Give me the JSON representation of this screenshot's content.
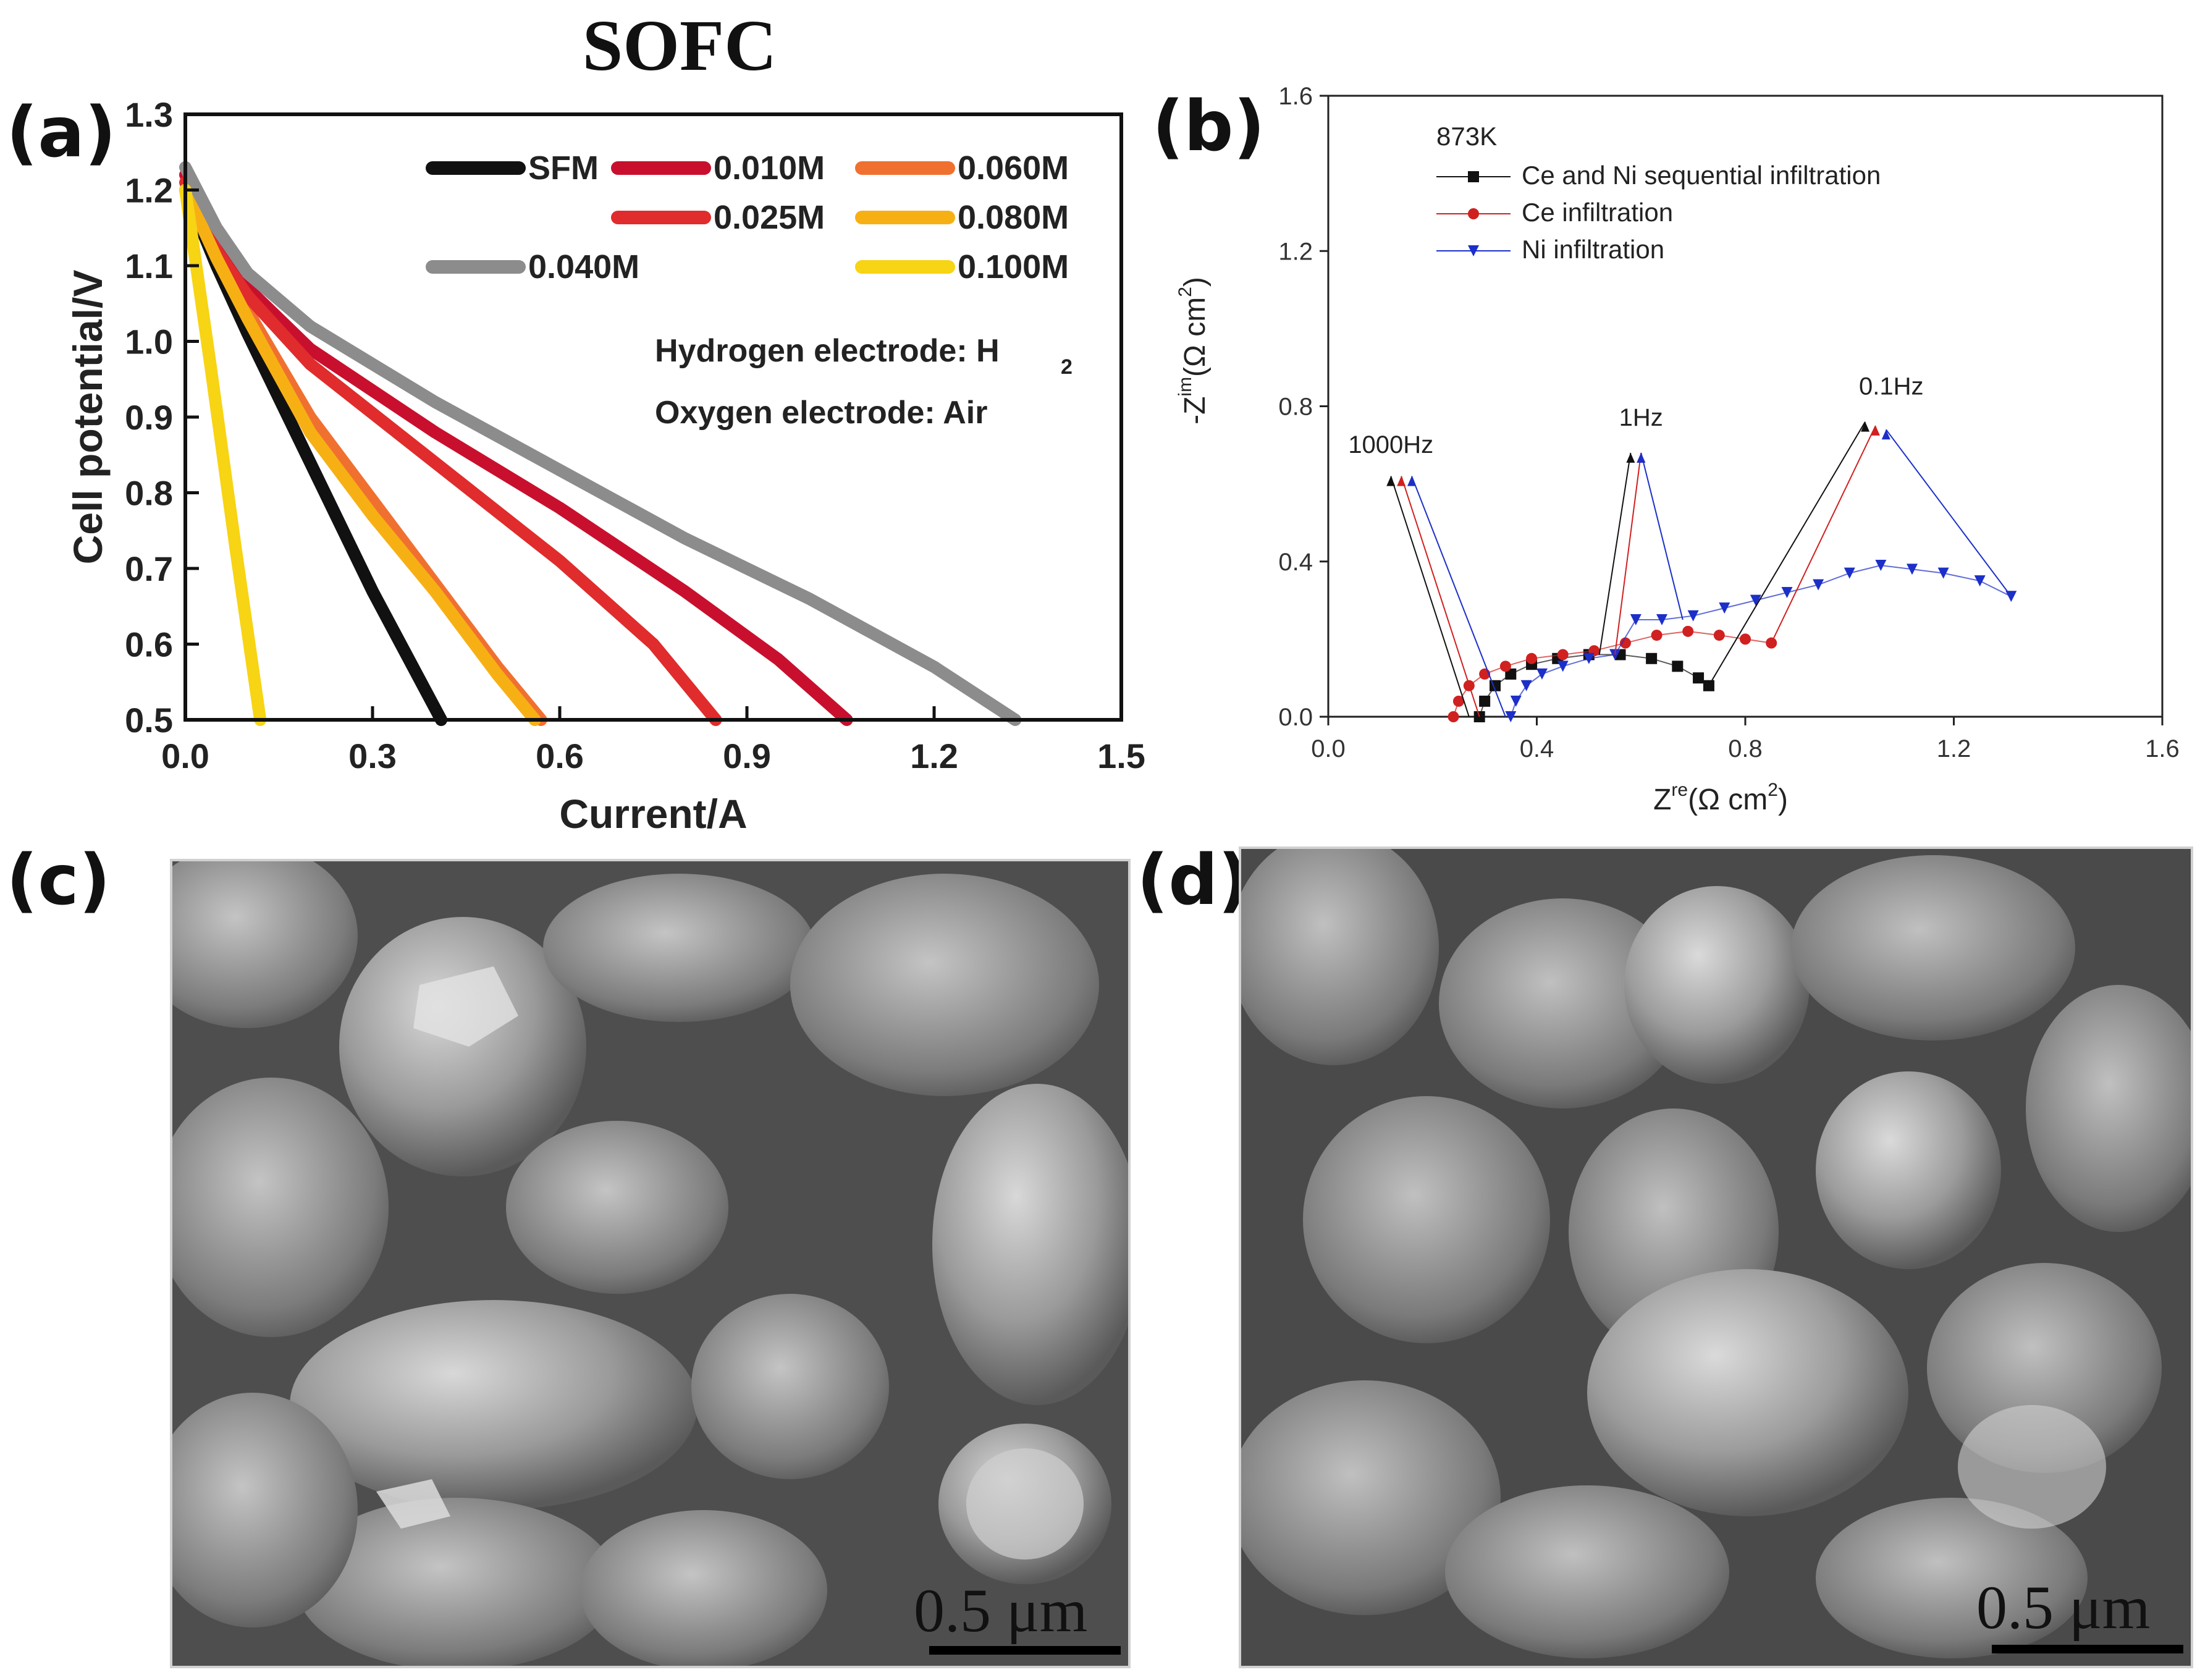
{
  "figure": {
    "title": "SOFC"
  },
  "panels": [
    {
      "label": "(a)"
    },
    {
      "label": "(b)"
    },
    {
      "label": "(c)"
    },
    {
      "label": "(d)"
    }
  ],
  "chart_data": [
    {
      "type": "line",
      "panel": "(a)",
      "xlabel": "Current/A",
      "ylabel": "Cell potential/V",
      "xlim": [
        0.0,
        1.5
      ],
      "ylim": [
        0.5,
        1.3
      ],
      "xticks": [
        "0.0",
        "0.3",
        "0.6",
        "0.9",
        "1.2",
        "1.5"
      ],
      "yticks": [
        "0.5",
        "0.6",
        "0.7",
        "0.8",
        "0.9",
        "1.0",
        "1.1",
        "1.2",
        "1.3"
      ],
      "annotations": [
        "Hydrogen electrode: H",
        "2",
        "Oxygen electrode: Air"
      ],
      "legend_position": "top-right",
      "series": [
        {
          "name": "SFM",
          "color": "#111111",
          "x": [
            0.0,
            0.05,
            0.1,
            0.2,
            0.3,
            0.41
          ],
          "y": [
            1.2,
            1.1,
            1.01,
            0.84,
            0.67,
            0.5
          ]
        },
        {
          "name": "0.010M",
          "color": "#c8102e",
          "x": [
            0.0,
            0.05,
            0.1,
            0.2,
            0.4,
            0.6,
            0.8,
            0.95,
            1.06
          ],
          "y": [
            1.22,
            1.13,
            1.07,
            0.99,
            0.88,
            0.78,
            0.67,
            0.58,
            0.5
          ]
        },
        {
          "name": "0.060M",
          "color": "#f07030",
          "x": [
            0.0,
            0.05,
            0.1,
            0.2,
            0.3,
            0.4,
            0.5,
            0.57
          ],
          "y": [
            1.2,
            1.12,
            1.04,
            0.9,
            0.79,
            0.68,
            0.57,
            0.5
          ]
        },
        {
          "name": "0.025M",
          "color": "#e02c2c",
          "x": [
            0.0,
            0.05,
            0.1,
            0.2,
            0.4,
            0.6,
            0.75,
            0.85
          ],
          "y": [
            1.21,
            1.12,
            1.06,
            0.97,
            0.84,
            0.71,
            0.6,
            0.5
          ]
        },
        {
          "name": "0.080M",
          "color": "#f7b014",
          "x": [
            0.0,
            0.05,
            0.1,
            0.2,
            0.3,
            0.4,
            0.5,
            0.56
          ],
          "y": [
            1.2,
            1.11,
            1.03,
            0.88,
            0.77,
            0.67,
            0.56,
            0.5
          ]
        },
        {
          "name": "0.040M",
          "color": "#8c8c8c",
          "x": [
            0.0,
            0.05,
            0.1,
            0.2,
            0.4,
            0.6,
            0.8,
            1.0,
            1.2,
            1.33
          ],
          "y": [
            1.23,
            1.15,
            1.09,
            1.02,
            0.92,
            0.83,
            0.74,
            0.66,
            0.57,
            0.5
          ]
        },
        {
          "name": "0.100M",
          "color": "#f7d414",
          "x": [
            0.0,
            0.04,
            0.08,
            0.12
          ],
          "y": [
            1.2,
            0.97,
            0.73,
            0.5
          ]
        }
      ]
    },
    {
      "type": "scatter",
      "panel": "(b)",
      "xlabel": "Z",
      "xlabel_sup": "re",
      "xlabel_unit": "(Ω cm",
      "ylabel": "-Z",
      "ylabel_sup": "im",
      "ylabel_unit": "(Ω cm",
      "unit_exp": "2",
      "unit_close": ")",
      "xlim": [
        0.0,
        1.6
      ],
      "ylim": [
        0.0,
        1.6
      ],
      "xticks": [
        "0.0",
        "0.4",
        "0.8",
        "1.2",
        "1.6"
      ],
      "yticks": [
        "0.0",
        "0.4",
        "0.8",
        "1.2",
        "1.6"
      ],
      "legend_title": "873K",
      "legend_position": "top-left",
      "frequency_labels": [
        "1000Hz",
        "1Hz",
        "0.1Hz"
      ],
      "series": [
        {
          "name": "Ce and Ni sequential infiltration",
          "color": "#111111",
          "marker": "square",
          "x": [
            0.29,
            0.3,
            0.32,
            0.35,
            0.39,
            0.44,
            0.5,
            0.56,
            0.62,
            0.67,
            0.71,
            0.73
          ],
          "y": [
            0.0,
            0.04,
            0.08,
            0.11,
            0.135,
            0.15,
            0.16,
            0.16,
            0.15,
            0.13,
            0.1,
            0.08
          ]
        },
        {
          "name": "Ce infiltration",
          "color": "#d02020",
          "marker": "circle",
          "x": [
            0.24,
            0.25,
            0.27,
            0.3,
            0.34,
            0.39,
            0.45,
            0.51,
            0.57,
            0.63,
            0.69,
            0.75,
            0.8,
            0.85
          ],
          "y": [
            0.0,
            0.04,
            0.08,
            0.11,
            0.13,
            0.15,
            0.16,
            0.17,
            0.19,
            0.21,
            0.22,
            0.21,
            0.2,
            0.19
          ]
        },
        {
          "name": "Ni infiltration",
          "color": "#1c2fc8",
          "marker": "triangle-down",
          "x": [
            0.35,
            0.36,
            0.38,
            0.41,
            0.45,
            0.5,
            0.55,
            0.59,
            0.64,
            0.7,
            0.76,
            0.82,
            0.88,
            0.94,
            1.0,
            1.06,
            1.12,
            1.18,
            1.25,
            1.31
          ],
          "y": [
            0.0,
            0.04,
            0.08,
            0.11,
            0.13,
            0.15,
            0.16,
            0.25,
            0.25,
            0.26,
            0.28,
            0.3,
            0.32,
            0.34,
            0.37,
            0.39,
            0.38,
            0.37,
            0.35,
            0.31
          ]
        }
      ]
    }
  ],
  "sem_images": [
    {
      "panel": "(c)",
      "scale_label": "0.5 μm"
    },
    {
      "panel": "(d)",
      "scale_label": "0.5 μm"
    }
  ]
}
